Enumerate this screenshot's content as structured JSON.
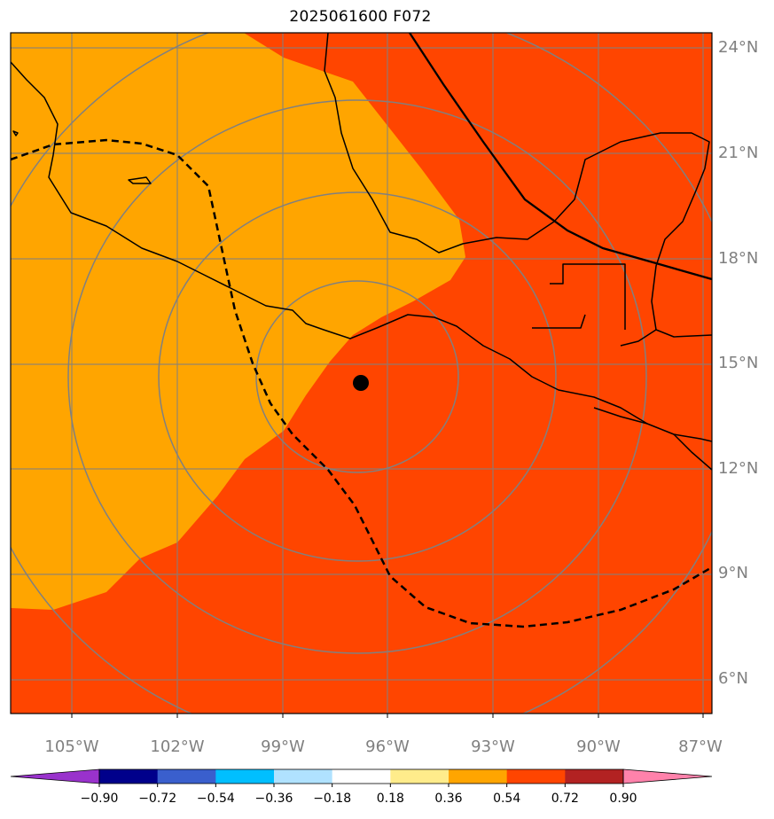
{
  "title": "2025061600 F072",
  "colors": {
    "orange": "#FFA500",
    "red_orange": "#FF4500",
    "grid": "#808080",
    "coast": "#000000"
  },
  "lat_labels": [
    "24°N",
    "21°N",
    "18°N",
    "15°N",
    "12°N",
    "9°N",
    "6°N"
  ],
  "lon_labels": [
    "105°W",
    "102°W",
    "99°W",
    "96°W",
    "93°W",
    "90°W",
    "87°W"
  ],
  "storm_marker": {
    "lon": -96.8,
    "lat": 14.4
  },
  "colorbar": {
    "colors": [
      "#9932CC",
      "#00008B",
      "#3A5FCD",
      "#00BFFF",
      "#B0E2FF",
      "#FFFFFF",
      "#FFEC8B",
      "#FFA500",
      "#FF4500",
      "#B22222",
      "#FF82AB"
    ],
    "tick_labels": [
      "−0.90",
      "−0.72",
      "−0.54",
      "−0.36",
      "−0.18",
      "0.18",
      "0.36",
      "0.54",
      "0.72",
      "0.90"
    ]
  }
}
